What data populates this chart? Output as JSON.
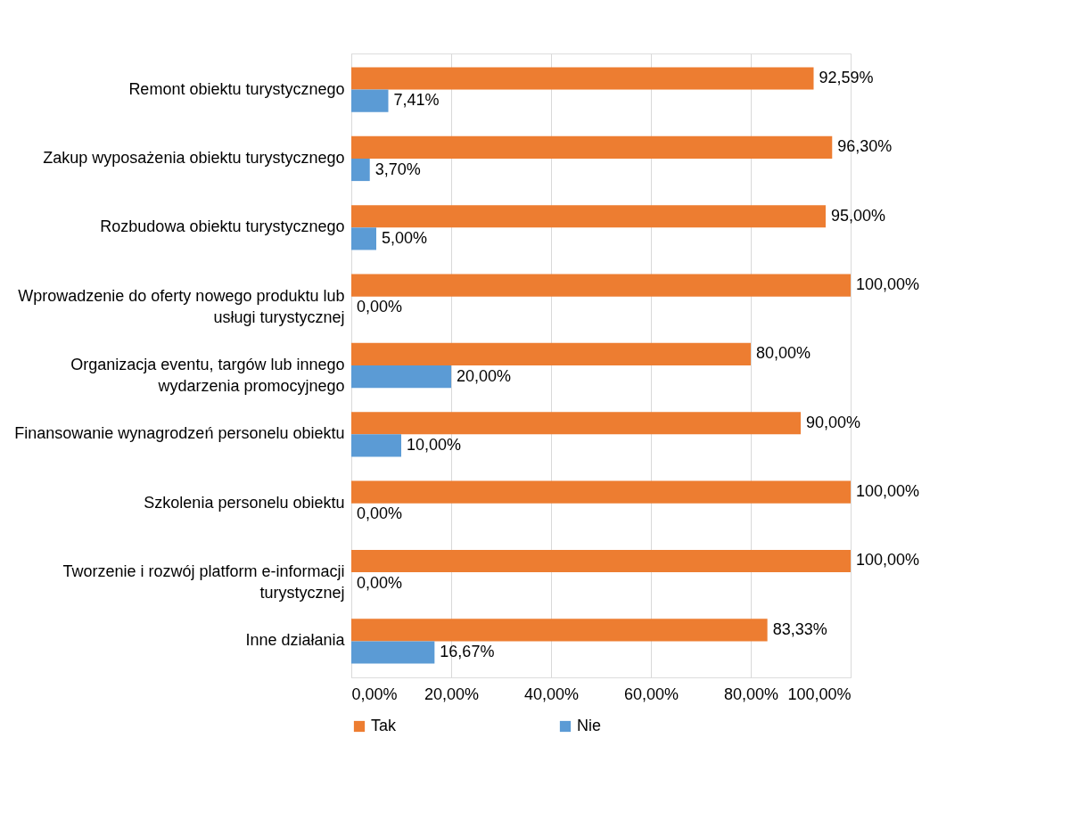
{
  "chart_data": {
    "type": "bar",
    "orientation": "horizontal",
    "categories": [
      "Remont obiektu turystycznego",
      "Zakup wyposażenia obiektu turystycznego",
      "Rozbudowa obiektu turystycznego",
      "Wprowadzenie do oferty nowego produktu lub usługi turystycznej",
      "Organizacja eventu,  targów lub innego wydarzenia promocyjnego",
      "Finansowanie wynagrodzeń personelu obiektu",
      "Szkolenia personelu obiektu",
      "Tworzenie i rozwój platform e-informacji turystycznej",
      "Inne działania"
    ],
    "series": [
      {
        "name": "Tak",
        "color": "#ed7d31",
        "values": [
          92.59,
          96.3,
          95.0,
          100.0,
          80.0,
          90.0,
          100.0,
          100.0,
          83.33
        ],
        "value_labels": [
          "92,59%",
          "96,30%",
          "95,00%",
          "100,00%",
          "80,00%",
          "90,00%",
          "100,00%",
          "100,00%",
          "83,33%"
        ]
      },
      {
        "name": "Nie",
        "color": "#5b9bd5",
        "values": [
          7.41,
          3.7,
          5.0,
          0.0,
          20.0,
          10.0,
          0.0,
          0.0,
          16.67
        ],
        "value_labels": [
          "7,41%",
          "3,70%",
          "5,00%",
          "0,00%",
          "20,00%",
          "10,00%",
          "0,00%",
          "0,00%",
          "16,67%"
        ]
      }
    ],
    "xlim": [
      0,
      100
    ],
    "xticks": [
      {
        "value": 0,
        "label": "0,00%"
      },
      {
        "value": 20,
        "label": "20,00%"
      },
      {
        "value": 40,
        "label": "40,00%"
      },
      {
        "value": 60,
        "label": "60,00%"
      },
      {
        "value": 80,
        "label": "80,00%"
      },
      {
        "value": 100,
        "label": "100,00%"
      }
    ],
    "grid": "x",
    "legend": "bottom"
  }
}
